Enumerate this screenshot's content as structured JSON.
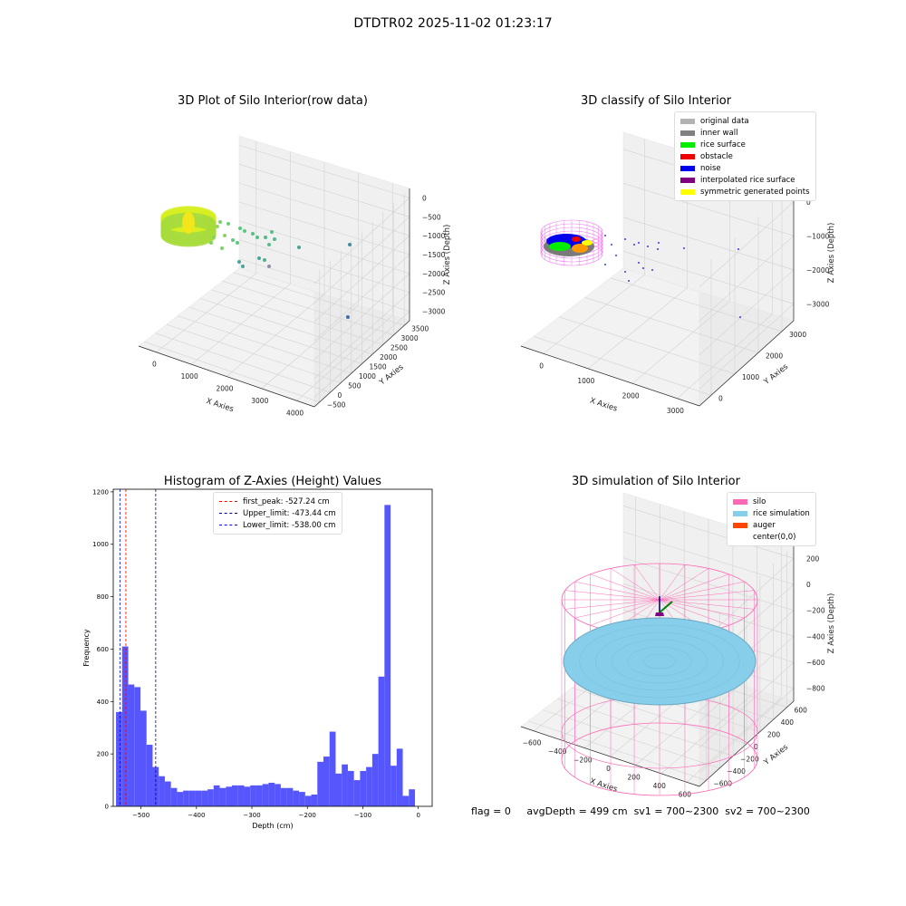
{
  "suptitle": "DTDTR02 2025-11-02 01:23:17",
  "panels": {
    "raw": {
      "title": "3D Plot of Silo Interior(row data)",
      "xlabel": "X Axies",
      "ylabel": "Y Axies",
      "zlabel": "Z Axies (Depth)",
      "xticks": [
        "0",
        "1000",
        "2000",
        "3000",
        "4000"
      ],
      "yticks": [
        "−500",
        "0",
        "500",
        "1000",
        "1500",
        "2000",
        "2500",
        "3000",
        "3500"
      ],
      "zticks": [
        "0",
        "−500",
        "−1000",
        "−1500",
        "−2000",
        "−2500",
        "−3000"
      ]
    },
    "classify": {
      "title": "3D classify of Silo Interior",
      "xlabel": "X Axies",
      "ylabel": "Y Axies",
      "zlabel": "Z Axies (Depth)",
      "xticks": [
        "0",
        "1000",
        "2000",
        "3000"
      ],
      "yticks": [
        "0",
        "1000",
        "2000",
        "3000"
      ],
      "zticks": [
        "0",
        "−1000",
        "−2000",
        "−3000"
      ],
      "legend": [
        {
          "label": "original data",
          "color": "#b3b3b3"
        },
        {
          "label": "inner wall",
          "color": "#808080"
        },
        {
          "label": "rice surface",
          "color": "#00ee00"
        },
        {
          "label": "obstacle",
          "color": "#ee0000"
        },
        {
          "label": "noise",
          "color": "#0000ee"
        },
        {
          "label": "interpolated rice surface",
          "color": "#800080"
        },
        {
          "label": "symmetric generated points",
          "color": "#ffff00"
        }
      ]
    },
    "simulation": {
      "title": "3D simulation of Silo Interior",
      "xlabel": "X Axies",
      "ylabel": "Y Axies",
      "zlabel": "Z Axies (Depth)",
      "xticks": [
        "−600",
        "−400",
        "−200",
        "0",
        "200",
        "400",
        "600"
      ],
      "yticks": [
        "−600",
        "−400",
        "−200",
        "0",
        "200",
        "400",
        "600"
      ],
      "zticks": [
        "200",
        "0",
        "−200",
        "−400",
        "−600",
        "−800"
      ],
      "legend": [
        {
          "label": "silo",
          "color": "#ff69b4"
        },
        {
          "label": "rice simulation",
          "color": "#87ceeb"
        },
        {
          "label": "auger",
          "color": "#ff4500"
        },
        {
          "label": "center(0,0)",
          "color": ""
        }
      ]
    }
  },
  "chart_data": [
    {
      "type": "bar",
      "title": "Histogram of Z-Axies (Height) Values",
      "xlabel": "Depth (cm)",
      "ylabel": "Frequency",
      "xlim": [
        -550,
        25
      ],
      "ylim": [
        0,
        1210
      ],
      "xticks": [
        -500,
        -400,
        -300,
        -200,
        -100,
        0
      ],
      "yticks": [
        0,
        200,
        400,
        600,
        800,
        1000,
        1200
      ],
      "bin_start": -545,
      "bin_width": 11,
      "values": [
        360,
        610,
        465,
        455,
        365,
        235,
        150,
        115,
        95,
        70,
        55,
        60,
        60,
        60,
        60,
        65,
        80,
        70,
        75,
        80,
        80,
        75,
        80,
        80,
        85,
        90,
        85,
        70,
        70,
        60,
        55,
        40,
        45,
        170,
        190,
        285,
        125,
        160,
        135,
        100,
        135,
        150,
        200,
        495,
        1150,
        155,
        220,
        40,
        65
      ],
      "bar_color": "#4d4dff",
      "lines": [
        {
          "label": "first_peak: -527.24 cm",
          "x": -527.24,
          "color": "#ff0000"
        },
        {
          "label": "Upper_limit: -473.44 cm",
          "x": -473.44,
          "color": "#00008b"
        },
        {
          "label": "Lower_limit: -538.00 cm",
          "x": -538.0,
          "color": "#0000ff"
        }
      ]
    }
  ],
  "status": {
    "flag": "flag = 0",
    "avg_depth": "avgDepth = 499 cm",
    "sv1": "sv1 = 700~2300",
    "sv2": "sv2 = 700~2300"
  }
}
